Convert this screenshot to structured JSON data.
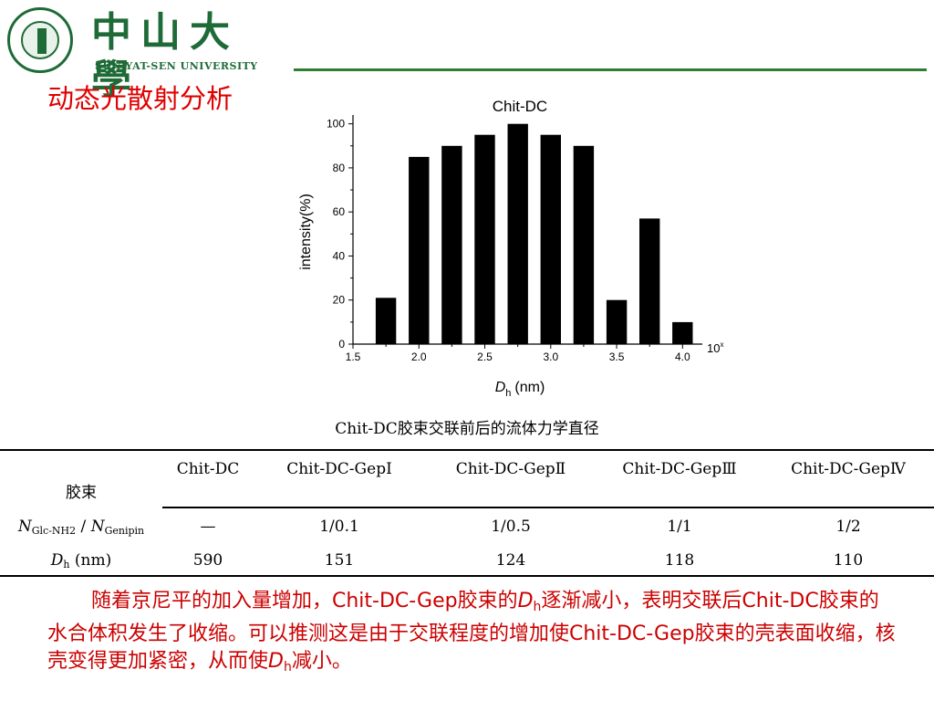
{
  "header": {
    "university_cn": "中山大學",
    "university_en": "SUN YAT-SEN UNIVERSITY",
    "accent_color": "#1f6b37"
  },
  "section_title": "动态光散射分析",
  "chart_data": {
    "type": "bar",
    "title": "Chit-DC",
    "xlabel_var": "D",
    "xlabel_sub": "h",
    "xlabel_unit": "(nm)",
    "ylabel": "intensity(%)",
    "x_scale_note": "10",
    "x_scale_exp": "x",
    "x_tick_labels": [
      "1.5",
      "2.0",
      "2.5",
      "3.0",
      "3.5",
      "4.0"
    ],
    "x_ticks": [
      1.5,
      2.0,
      2.5,
      3.0,
      3.5,
      4.0
    ],
    "y_tick_labels": [
      "0",
      "20",
      "40",
      "60",
      "80",
      "100"
    ],
    "y_ticks": [
      0,
      20,
      40,
      60,
      80,
      100
    ],
    "xlim": [
      1.5,
      4.15
    ],
    "ylim": [
      0,
      104
    ],
    "x": [
      1.75,
      2.0,
      2.25,
      2.5,
      2.75,
      3.0,
      3.25,
      3.5,
      3.75,
      4.0
    ],
    "values": [
      21,
      85,
      90,
      95,
      100,
      95,
      90,
      20,
      57,
      10
    ],
    "bar_color": "#000000"
  },
  "table": {
    "caption": "Chit-DC胶束交联前后的流体力学直径",
    "corner_label": "胶束",
    "columns": [
      "Chit-DC",
      "Chit-DC-GepⅠ",
      "Chit-DC-GepⅡ",
      "Chit-DC-GepⅢ",
      "Chit-DC-GepⅣ"
    ],
    "row1": {
      "label_n1": "N",
      "label_sub1": "Glc-NH2",
      "label_slash": " / ",
      "label_n2": "N",
      "label_sub2": "Genipin",
      "values": [
        "—",
        "1/0.1",
        "1/0.5",
        "1/1",
        "1/2"
      ]
    },
    "row2": {
      "label_var": "D",
      "label_sub": "h",
      "label_unit": " (nm)",
      "values": [
        "590",
        "151",
        "124",
        "118",
        "110"
      ]
    }
  },
  "conclusion": {
    "part1": "随着京尼平的加入量增加，Chit-DC-Gep胶束的",
    "var1": "D",
    "sub1": "h",
    "part2": "逐渐减小，表明交联后Chit-DC胶束的水合体积发生了收缩。可以推测这是由于交联程度的增加使Chit-DC-Gep胶束的壳表面收缩，核壳变得更加紧密，从而使",
    "var2": "D",
    "sub2": "h",
    "part3": "减小。",
    "color": "#cc0000"
  }
}
